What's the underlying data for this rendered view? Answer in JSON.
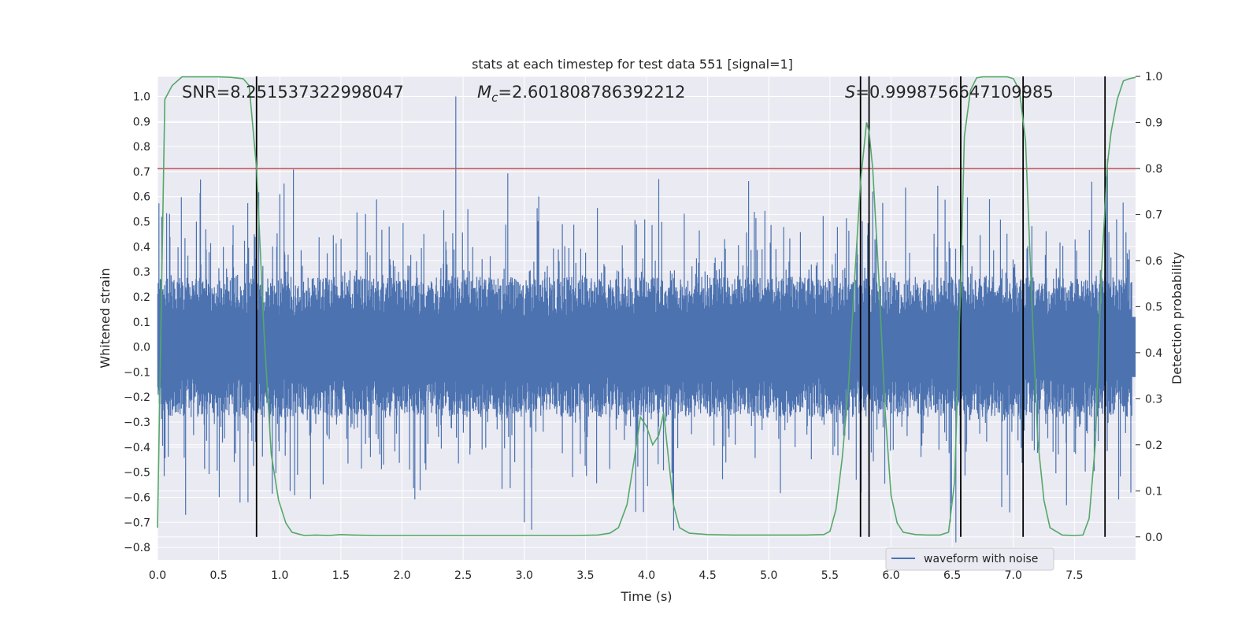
{
  "chart_data": {
    "type": "line",
    "title": "stats at each timestep for test data 551 [signal=1]",
    "xlabel": "Time (s)",
    "ylabel_left": "Whitened strain",
    "ylabel_right": "Detection probability",
    "xlim": [
      0.0,
      8.0
    ],
    "ylim_left": [
      -0.85,
      1.08
    ],
    "ylim_right": [
      -0.05,
      1.0
    ],
    "x_ticks": [
      0.0,
      0.5,
      1.0,
      1.5,
      2.0,
      2.5,
      3.0,
      3.5,
      4.0,
      4.5,
      5.0,
      5.5,
      6.0,
      6.5,
      7.0,
      7.5
    ],
    "x_tick_labels": [
      "0.0",
      "0.5",
      "1.0",
      "1.5",
      "2.0",
      "2.5",
      "3.0",
      "3.5",
      "4.0",
      "4.5",
      "5.0",
      "5.5",
      "6.0",
      "6.5",
      "7.0",
      "7.5"
    ],
    "y_ticks_left": [
      -0.8,
      -0.7,
      -0.6,
      -0.5,
      -0.4,
      -0.3,
      -0.2,
      -0.1,
      0.0,
      0.1,
      0.2,
      0.3,
      0.4,
      0.5,
      0.6,
      0.7,
      0.8,
      0.9,
      1.0
    ],
    "y_tick_labels_left": [
      "−0.8",
      "−0.7",
      "−0.6",
      "−0.5",
      "−0.4",
      "−0.3",
      "−0.2",
      "−0.1",
      "0.0",
      "0.1",
      "0.2",
      "0.3",
      "0.4",
      "0.5",
      "0.6",
      "0.7",
      "0.8",
      "0.9",
      "1.0"
    ],
    "y_ticks_right": [
      0.0,
      0.1,
      0.2,
      0.3,
      0.4,
      0.5,
      0.6,
      0.7,
      0.8,
      0.9,
      1.0
    ],
    "y_tick_labels_right": [
      "0.0",
      "0.1",
      "0.2",
      "0.3",
      "0.4",
      "0.5",
      "0.6",
      "0.7",
      "0.8",
      "0.9",
      "1.0"
    ],
    "grid": true,
    "legend": {
      "placement": "lower-right",
      "entries": [
        {
          "label": "waveform with noise",
          "color": "#4c72b0"
        }
      ]
    },
    "annotations": {
      "snr": "SNR=8.251537322998047",
      "mc_symbol": "M",
      "mc_sub": "c",
      "mc_value": "=2.601808786392212",
      "s_symbol": "S",
      "s_value": "=0.9998756647109985"
    },
    "colors": {
      "background": "#eaeaf2",
      "grid": "#ffffff",
      "waveform": "#4c72b0",
      "probability": "#55a868",
      "threshold": "#c44e52",
      "events": "#000000"
    },
    "threshold_probability": 0.8,
    "waveform": {
      "seed": 551,
      "samples": 2400,
      "core_amplitude": 0.12,
      "spike_probability": 0.18,
      "spike_max": 0.52,
      "peaks": [
        {
          "x": 2.44,
          "y": 1.0
        },
        {
          "x": 2.44,
          "y": -0.18
        },
        {
          "x": 4.1,
          "y": 0.67
        },
        {
          "x": 0.23,
          "y": -0.67
        },
        {
          "x": 3.0,
          "y": -0.7
        },
        {
          "x": 3.06,
          "y": -0.73
        },
        {
          "x": 0.74,
          "y": -0.62
        },
        {
          "x": 1.0,
          "y": 0.61
        },
        {
          "x": 6.53,
          "y": -0.78
        },
        {
          "x": 6.57,
          "y": 0.56
        },
        {
          "x": 6.97,
          "y": -0.66
        },
        {
          "x": 7.77,
          "y": 0.75
        },
        {
          "x": 7.76,
          "y": 0.68
        },
        {
          "x": 5.85,
          "y": 0.62
        }
      ]
    },
    "event_lines": [
      0.81,
      5.75,
      5.82,
      6.57,
      7.08,
      7.75
    ],
    "probability_series": {
      "name": "detection probability",
      "x": [
        0.0,
        0.06,
        0.12,
        0.2,
        0.3,
        0.4,
        0.5,
        0.6,
        0.7,
        0.75,
        0.81,
        0.87,
        0.93,
        0.99,
        1.05,
        1.1,
        1.2,
        1.3,
        1.4,
        1.5,
        1.6,
        1.8,
        2.0,
        2.2,
        2.4,
        2.6,
        2.8,
        3.0,
        3.2,
        3.4,
        3.6,
        3.7,
        3.77,
        3.84,
        3.9,
        3.95,
        4.0,
        4.05,
        4.1,
        4.14,
        4.18,
        4.22,
        4.27,
        4.35,
        4.5,
        4.7,
        4.9,
        5.1,
        5.3,
        5.45,
        5.5,
        5.55,
        5.6,
        5.65,
        5.7,
        5.75,
        5.8,
        5.82,
        5.85,
        5.9,
        5.95,
        6.0,
        6.05,
        6.1,
        6.2,
        6.3,
        6.4,
        6.47,
        6.52,
        6.57,
        6.6,
        6.65,
        6.7,
        6.75,
        6.85,
        6.95,
        7.0,
        7.05,
        7.1,
        7.15,
        7.2,
        7.25,
        7.3,
        7.4,
        7.5,
        7.57,
        7.62,
        7.67,
        7.72,
        7.77,
        7.8,
        7.85,
        7.9,
        7.95,
        8.0
      ],
      "y": [
        0.02,
        0.95,
        0.98,
        0.999,
        0.999,
        0.999,
        0.999,
        0.998,
        0.995,
        0.98,
        0.8,
        0.45,
        0.18,
        0.08,
        0.03,
        0.01,
        0.003,
        0.004,
        0.003,
        0.005,
        0.004,
        0.003,
        0.003,
        0.003,
        0.003,
        0.003,
        0.003,
        0.003,
        0.003,
        0.003,
        0.004,
        0.008,
        0.02,
        0.07,
        0.17,
        0.26,
        0.24,
        0.2,
        0.22,
        0.27,
        0.17,
        0.07,
        0.02,
        0.008,
        0.005,
        0.004,
        0.004,
        0.004,
        0.004,
        0.005,
        0.012,
        0.06,
        0.17,
        0.32,
        0.55,
        0.77,
        0.9,
        0.88,
        0.8,
        0.56,
        0.28,
        0.09,
        0.03,
        0.01,
        0.005,
        0.004,
        0.004,
        0.01,
        0.12,
        0.55,
        0.87,
        0.97,
        0.997,
        0.999,
        0.999,
        0.999,
        0.995,
        0.97,
        0.86,
        0.52,
        0.21,
        0.08,
        0.02,
        0.004,
        0.003,
        0.004,
        0.04,
        0.2,
        0.57,
        0.81,
        0.88,
        0.95,
        0.99,
        0.995,
        0.998
      ]
    }
  }
}
